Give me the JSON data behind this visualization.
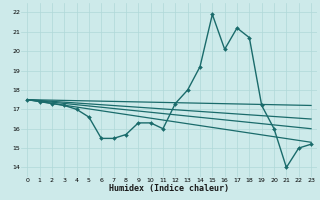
{
  "xlabel": "Humidex (Indice chaleur)",
  "ylabel": "",
  "background_color": "#cdeaea",
  "grid_color": "#b0d8d8",
  "line_color": "#1a6b6b",
  "xlim": [
    -0.5,
    23.5
  ],
  "ylim": [
    13.5,
    22.5
  ],
  "yticks": [
    14,
    15,
    16,
    17,
    18,
    19,
    20,
    21,
    22
  ],
  "xticks": [
    0,
    1,
    2,
    3,
    4,
    5,
    6,
    7,
    8,
    9,
    10,
    11,
    12,
    13,
    14,
    15,
    16,
    17,
    18,
    19,
    20,
    21,
    22,
    23
  ],
  "series": [
    {
      "x": [
        0,
        1,
        2,
        3,
        4,
        5,
        6,
        7,
        8,
        9,
        10,
        11,
        12,
        13,
        14,
        15,
        16,
        17,
        18,
        19,
        20,
        21,
        22,
        23
      ],
      "y": [
        17.5,
        17.4,
        17.3,
        17.2,
        17.0,
        16.6,
        15.5,
        15.5,
        15.7,
        16.3,
        16.3,
        16.0,
        17.3,
        18.0,
        19.2,
        21.9,
        20.1,
        21.2,
        20.7,
        17.2,
        16.0,
        14.0,
        15.0,
        15.2
      ],
      "marker": "D",
      "markersize": 2.0,
      "linewidth": 1.0
    },
    {
      "x": [
        0,
        23
      ],
      "y": [
        17.5,
        17.2
      ],
      "marker": null,
      "markersize": 0,
      "linewidth": 0.9
    },
    {
      "x": [
        0,
        23
      ],
      "y": [
        17.5,
        16.5
      ],
      "marker": null,
      "markersize": 0,
      "linewidth": 0.9
    },
    {
      "x": [
        0,
        23
      ],
      "y": [
        17.5,
        16.0
      ],
      "marker": null,
      "markersize": 0,
      "linewidth": 0.9
    },
    {
      "x": [
        0,
        23
      ],
      "y": [
        17.5,
        15.3
      ],
      "marker": null,
      "markersize": 0,
      "linewidth": 0.9
    }
  ]
}
